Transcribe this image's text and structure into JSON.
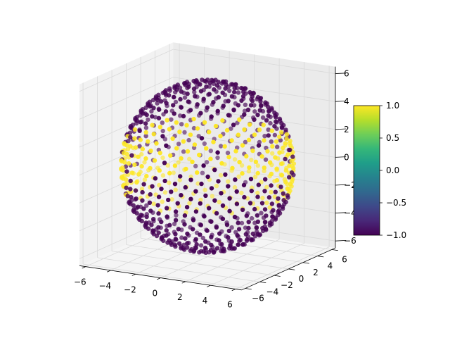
{
  "chart_data": {
    "type": "scatter",
    "projection": "3d",
    "title": "",
    "xlabel": "",
    "ylabel": "",
    "zlabel": "",
    "xlim": [
      -6.5,
      6.5
    ],
    "ylim": [
      -6.5,
      6.5
    ],
    "zlim": [
      -6.5,
      6.5
    ],
    "x_ticks": [
      "−6",
      "−4",
      "−2",
      "0",
      "2",
      "4",
      "6"
    ],
    "y_ticks": [
      "−6",
      "−4",
      "−2",
      "0",
      "2",
      "4",
      "6"
    ],
    "z_ticks": [
      "−6",
      "−4",
      "−2",
      "0",
      "2",
      "4",
      "6"
    ],
    "grid": true,
    "colormap": "viridis",
    "color_values": [
      -1,
      1
    ],
    "description_of_data": "points on a sphere of radius ~6; color +1 (yellow) near equatorial band |z|<~2, otherwise -1 (purple)",
    "sphere_radius": 6,
    "band_half_height": 2,
    "colorbar": {
      "range": [
        -1.0,
        1.0
      ],
      "ticks": [
        "−1.0",
        "−0.5",
        "0.0",
        "0.5",
        "1.0"
      ],
      "position": "right"
    },
    "colors": {
      "high": "#fde725",
      "low": "#440154",
      "pane": "#f2f2f2",
      "grid": "#d9d9d9"
    }
  }
}
